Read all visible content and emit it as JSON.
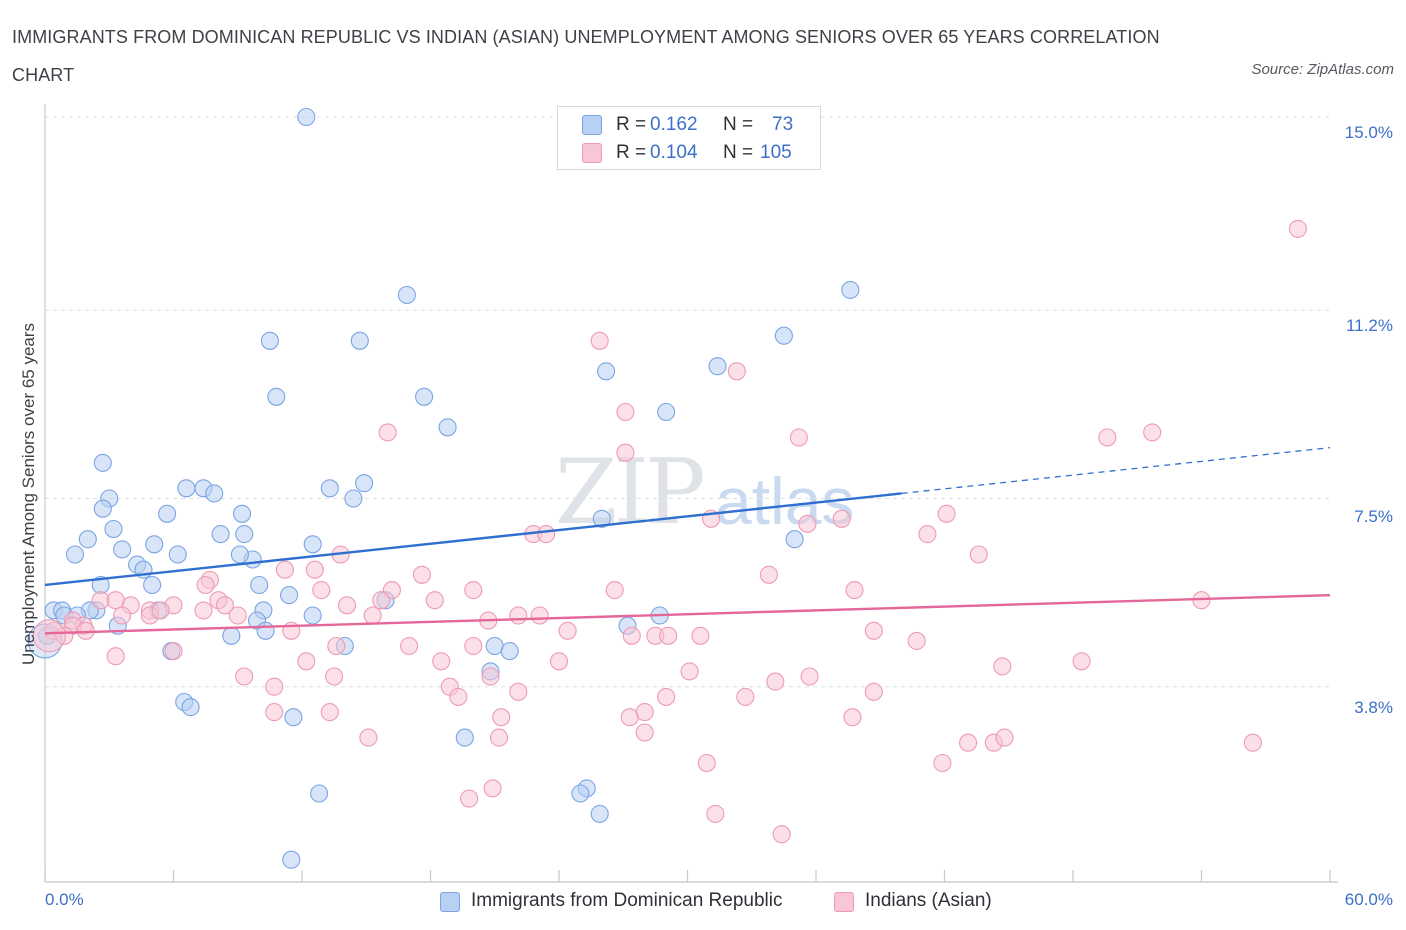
{
  "title": "IMMIGRANTS FROM DOMINICAN REPUBLIC VS INDIAN (ASIAN) UNEMPLOYMENT AMONG SENIORS OVER 65 YEARS CORRELATION CHART",
  "source": "Source: ZipAtlas.com",
  "watermark": {
    "zip": "ZIP",
    "atlas": "atlas"
  },
  "colors": {
    "blue_fill": "#b8d0f2",
    "blue_stroke": "#7aa5e3",
    "blue_line": "#2f6fd0",
    "pink_fill": "#f8c6d6",
    "pink_stroke": "#ee9ab6",
    "pink_line": "#e5679a",
    "grid": "#dcdfe4",
    "axis": "#c5c8cd",
    "tick_text": "#3d6fc9"
  },
  "legend_top": [
    {
      "r_label": "R =",
      "r_value": "0.162",
      "n_label": "N =",
      "n_value": "73"
    },
    {
      "r_label": "R =",
      "r_value": "0.104",
      "n_label": "N =",
      "n_value": "105"
    }
  ],
  "chart_data": {
    "type": "scatter",
    "title": "IMMIGRANTS FROM DOMINICAN REPUBLIC VS INDIAN (ASIAN) UNEMPLOYMENT AMONG SENIORS OVER 65 YEARS CORRELATION CHART",
    "xlabel": "",
    "ylabel": "Unemployment Among Seniors over 65 years",
    "xlim": [
      0,
      60
    ],
    "ylim": [
      0,
      15.3
    ],
    "x_tick_labels": [
      "0.0%",
      "60.0%"
    ],
    "y_ticks": [
      3.8,
      7.5,
      11.2,
      15.0
    ],
    "y_tick_labels": [
      "3.8%",
      "7.5%",
      "11.2%",
      "15.0%"
    ],
    "grid": true,
    "legend_position": "bottom-center",
    "series": [
      {
        "name": "Immigrants from Dominican Republic",
        "color": "blue",
        "R": 0.162,
        "N": 73,
        "trend": {
          "x0": 0,
          "y0": 5.8,
          "x1": 40,
          "y1": 7.6,
          "dash_to_x": 60,
          "dash_to_y": 8.5
        },
        "points": [
          [
            12.2,
            15.0
          ],
          [
            16.9,
            11.5
          ],
          [
            37.6,
            11.6
          ],
          [
            10.5,
            10.6
          ],
          [
            14.7,
            10.6
          ],
          [
            34.5,
            10.7
          ],
          [
            26.2,
            10.0
          ],
          [
            31.4,
            10.1
          ],
          [
            17.7,
            9.5
          ],
          [
            10.8,
            9.5
          ],
          [
            29.0,
            9.2
          ],
          [
            18.8,
            8.9
          ],
          [
            2.7,
            8.2
          ],
          [
            7.4,
            7.7
          ],
          [
            3.0,
            7.5
          ],
          [
            6.6,
            7.7
          ],
          [
            7.9,
            7.6
          ],
          [
            13.3,
            7.7
          ],
          [
            14.9,
            7.8
          ],
          [
            14.4,
            7.5
          ],
          [
            2.7,
            7.3
          ],
          [
            5.7,
            7.2
          ],
          [
            9.2,
            7.2
          ],
          [
            3.2,
            6.9
          ],
          [
            8.2,
            6.8
          ],
          [
            9.3,
            6.8
          ],
          [
            35.0,
            6.7
          ],
          [
            2.0,
            6.7
          ],
          [
            1.4,
            6.4
          ],
          [
            3.6,
            6.5
          ],
          [
            5.1,
            6.6
          ],
          [
            12.5,
            6.6
          ],
          [
            6.2,
            6.4
          ],
          [
            9.7,
            6.3
          ],
          [
            9.1,
            6.4
          ],
          [
            4.3,
            6.2
          ],
          [
            4.6,
            6.1
          ],
          [
            10.0,
            5.8
          ],
          [
            2.6,
            5.8
          ],
          [
            5.0,
            5.8
          ],
          [
            11.4,
            5.6
          ],
          [
            15.9,
            5.5
          ],
          [
            0.4,
            5.3
          ],
          [
            0.8,
            5.3
          ],
          [
            2.4,
            5.3
          ],
          [
            10.2,
            5.3
          ],
          [
            12.5,
            5.2
          ],
          [
            5.3,
            5.3
          ],
          [
            0.9,
            5.2
          ],
          [
            2.1,
            5.3
          ],
          [
            28.7,
            5.2
          ],
          [
            27.2,
            5.0
          ],
          [
            9.9,
            5.1
          ],
          [
            10.3,
            4.9
          ],
          [
            8.7,
            4.8
          ],
          [
            5.9,
            4.5
          ],
          [
            14.0,
            4.6
          ],
          [
            21.0,
            4.6
          ],
          [
            21.7,
            4.5
          ],
          [
            20.8,
            4.1
          ],
          [
            0.1,
            4.8
          ],
          [
            6.5,
            3.5
          ],
          [
            6.8,
            3.4
          ],
          [
            11.6,
            3.2
          ],
          [
            19.6,
            2.8
          ],
          [
            25.3,
            1.8
          ],
          [
            25.0,
            1.7
          ],
          [
            12.8,
            1.7
          ],
          [
            25.9,
            1.3
          ],
          [
            11.5,
            0.4
          ],
          [
            3.4,
            5.0
          ],
          [
            26.0,
            7.1
          ],
          [
            1.5,
            5.2
          ]
        ]
      },
      {
        "name": "Indians (Asian)",
        "color": "pink",
        "R": 0.104,
        "N": 105,
        "trend": {
          "x0": 0,
          "y0": 4.85,
          "x1": 60,
          "y1": 5.6
        },
        "points": [
          [
            58.5,
            12.8
          ],
          [
            25.9,
            10.6
          ],
          [
            32.3,
            10.0
          ],
          [
            27.1,
            9.2
          ],
          [
            16.0,
            8.8
          ],
          [
            49.6,
            8.7
          ],
          [
            35.2,
            8.7
          ],
          [
            51.7,
            8.8
          ],
          [
            27.1,
            8.4
          ],
          [
            42.1,
            7.2
          ],
          [
            31.1,
            7.1
          ],
          [
            37.2,
            7.1
          ],
          [
            35.6,
            7.0
          ],
          [
            41.2,
            6.8
          ],
          [
            22.8,
            6.8
          ],
          [
            23.4,
            6.8
          ],
          [
            13.8,
            6.4
          ],
          [
            43.6,
            6.4
          ],
          [
            11.2,
            6.1
          ],
          [
            17.6,
            6.0
          ],
          [
            33.8,
            6.0
          ],
          [
            7.7,
            5.9
          ],
          [
            7.5,
            5.8
          ],
          [
            16.2,
            5.7
          ],
          [
            12.9,
            5.7
          ],
          [
            26.6,
            5.7
          ],
          [
            20.0,
            5.7
          ],
          [
            37.8,
            5.7
          ],
          [
            1.3,
            5.1
          ],
          [
            2.6,
            5.5
          ],
          [
            4.0,
            5.4
          ],
          [
            6.0,
            5.4
          ],
          [
            8.1,
            5.5
          ],
          [
            8.4,
            5.4
          ],
          [
            3.3,
            5.5
          ],
          [
            4.9,
            5.3
          ],
          [
            7.4,
            5.3
          ],
          [
            14.1,
            5.4
          ],
          [
            15.7,
            5.5
          ],
          [
            18.2,
            5.5
          ],
          [
            54.0,
            5.5
          ],
          [
            1.8,
            5.0
          ],
          [
            3.6,
            5.2
          ],
          [
            4.9,
            5.2
          ],
          [
            5.4,
            5.3
          ],
          [
            9.0,
            5.2
          ],
          [
            15.3,
            5.2
          ],
          [
            22.1,
            5.2
          ],
          [
            23.1,
            5.2
          ],
          [
            0.4,
            4.9
          ],
          [
            1.3,
            5.0
          ],
          [
            1.9,
            4.9
          ],
          [
            11.5,
            4.9
          ],
          [
            20.7,
            5.1
          ],
          [
            24.4,
            4.9
          ],
          [
            27.4,
            4.8
          ],
          [
            28.5,
            4.8
          ],
          [
            29.1,
            4.8
          ],
          [
            30.6,
            4.8
          ],
          [
            38.7,
            4.9
          ],
          [
            13.6,
            4.6
          ],
          [
            17.0,
            4.6
          ],
          [
            20.0,
            4.6
          ],
          [
            40.7,
            4.7
          ],
          [
            0.9,
            4.8
          ],
          [
            3.3,
            4.4
          ],
          [
            6.0,
            4.5
          ],
          [
            12.2,
            4.3
          ],
          [
            18.5,
            4.3
          ],
          [
            24.0,
            4.3
          ],
          [
            44.7,
            4.2
          ],
          [
            48.4,
            4.3
          ],
          [
            30.1,
            4.1
          ],
          [
            35.7,
            4.0
          ],
          [
            9.3,
            4.0
          ],
          [
            13.5,
            4.0
          ],
          [
            20.8,
            4.0
          ],
          [
            10.7,
            3.8
          ],
          [
            18.9,
            3.8
          ],
          [
            29.0,
            3.6
          ],
          [
            34.1,
            3.9
          ],
          [
            38.7,
            3.7
          ],
          [
            22.1,
            3.7
          ],
          [
            19.3,
            3.6
          ],
          [
            32.7,
            3.6
          ],
          [
            13.3,
            3.3
          ],
          [
            10.7,
            3.3
          ],
          [
            21.3,
            3.2
          ],
          [
            27.3,
            3.2
          ],
          [
            28.0,
            3.3
          ],
          [
            37.7,
            3.2
          ],
          [
            15.1,
            2.8
          ],
          [
            28.0,
            2.9
          ],
          [
            21.2,
            2.8
          ],
          [
            43.1,
            2.7
          ],
          [
            44.3,
            2.7
          ],
          [
            44.8,
            2.8
          ],
          [
            56.4,
            2.7
          ],
          [
            30.9,
            2.3
          ],
          [
            41.9,
            2.3
          ],
          [
            19.8,
            1.6
          ],
          [
            20.9,
            1.8
          ],
          [
            31.3,
            1.3
          ],
          [
            34.4,
            0.9
          ],
          [
            12.6,
            6.1
          ]
        ]
      }
    ]
  },
  "legend_bottom": [
    {
      "label": "Immigrants from Dominican Republic"
    },
    {
      "label": "Indians (Asian)"
    }
  ]
}
